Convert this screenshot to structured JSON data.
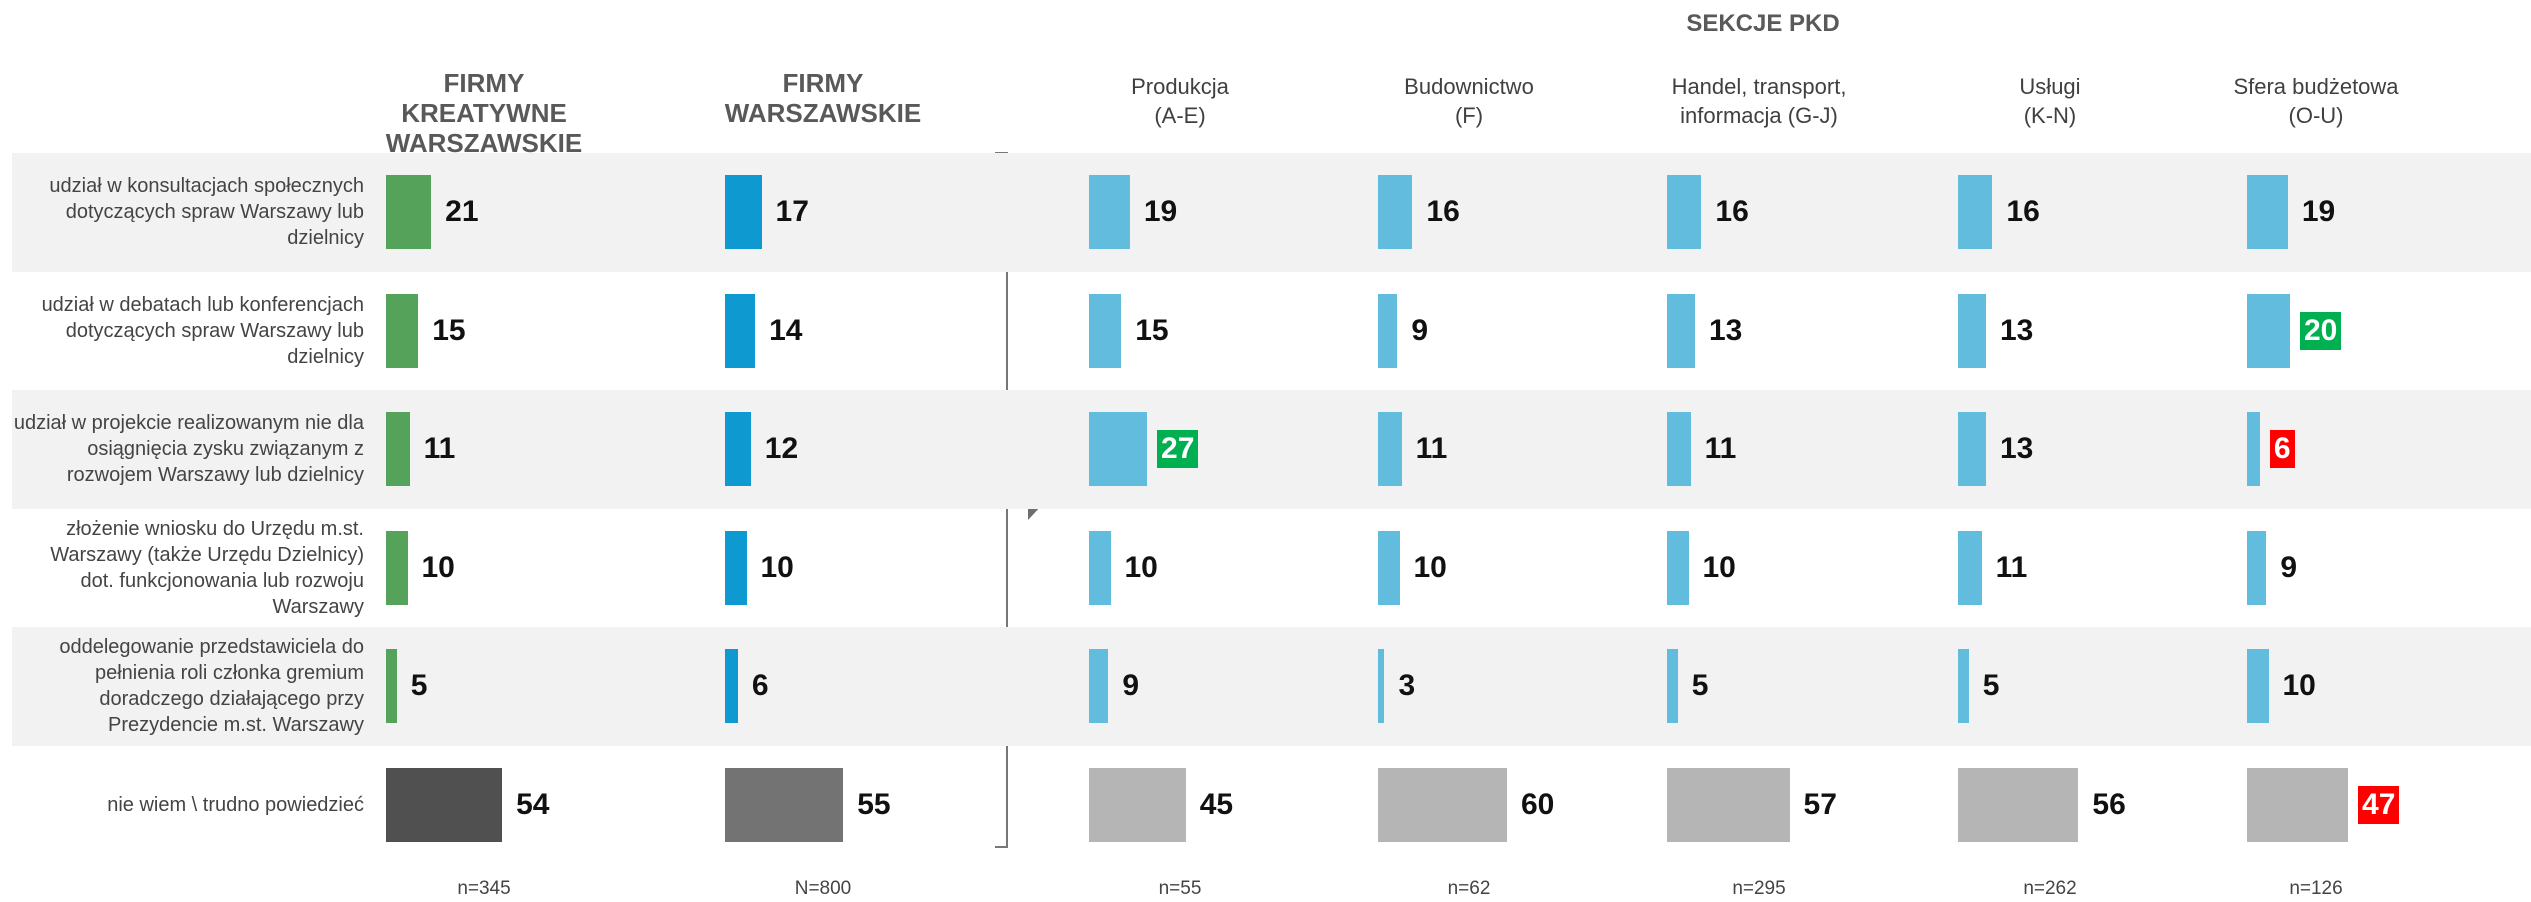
{
  "section_title": "SEKCJE PKD",
  "rows": [
    "udział w konsultacjach społecznych dotyczących spraw Warszawy lub dzielnicy",
    "udział w debatach lub konferencjach dotyczących spraw Warszawy lub dzielnicy",
    "udział w projekcie realizowanym nie dla osiągnięcia zysku związanym z rozwojem Warszawy lub dzielnicy",
    "złożenie wniosku do Urzędu m.st. Warszawy (także Urzędu Dzielnicy) dot. funkcjonowania lub rozwoju Warszawy",
    "oddelegowanie przedstawiciela do pełnienia roli członka gremium doradczego działającego przy Prezydencie m.st. Warszawy",
    "nie wiem \\ trudno powiedzieć"
  ],
  "columns": [
    {
      "title": "FIRMY\nKREATYWNE WARSZAWSKIE",
      "n": "n=345",
      "values": [
        21,
        15,
        11,
        10,
        5,
        54
      ],
      "bar_color": "#55a35a",
      "last_color": "#505050",
      "highlight": {}
    },
    {
      "title": "FIRMY\nWARSZAWSKIE",
      "n": "N=800",
      "values": [
        17,
        14,
        12,
        10,
        6,
        55
      ],
      "bar_color": "#0e9ad1",
      "last_color": "#737373",
      "highlight": {}
    },
    {
      "title": "Produkcja\n(A-E)",
      "n": "n=55",
      "values": [
        19,
        15,
        27,
        10,
        9,
        45
      ],
      "bar_color": "#62bcdd",
      "last_color": "#b5b5b5",
      "highlight": {
        "2": "#00b050"
      }
    },
    {
      "title": "Budownictwo\n(F)",
      "n": "n=62",
      "values": [
        16,
        9,
        11,
        10,
        3,
        60
      ],
      "bar_color": "#62bcdd",
      "last_color": "#b5b5b5",
      "highlight": {}
    },
    {
      "title": "Handel, transport,\ninformacja (G-J)",
      "n": "n=295",
      "values": [
        16,
        13,
        11,
        10,
        5,
        57
      ],
      "bar_color": "#62bcdd",
      "last_color": "#b5b5b5",
      "highlight": {}
    },
    {
      "title": "Usługi\n(K-N)",
      "n": "n=262",
      "values": [
        16,
        13,
        13,
        11,
        5,
        56
      ],
      "bar_color": "#62bcdd",
      "last_color": "#b5b5b5",
      "highlight": {}
    },
    {
      "title": "Sfera budżetowa\n(O-U)",
      "n": "n=126",
      "values": [
        19,
        20,
        6,
        9,
        10,
        47
      ],
      "bar_color": "#62bcdd",
      "last_color": "#b5b5b5",
      "highlight": {
        "1": "#00b050",
        "2": "#ff0000",
        "5": "#ff0000"
      }
    }
  ]
}
